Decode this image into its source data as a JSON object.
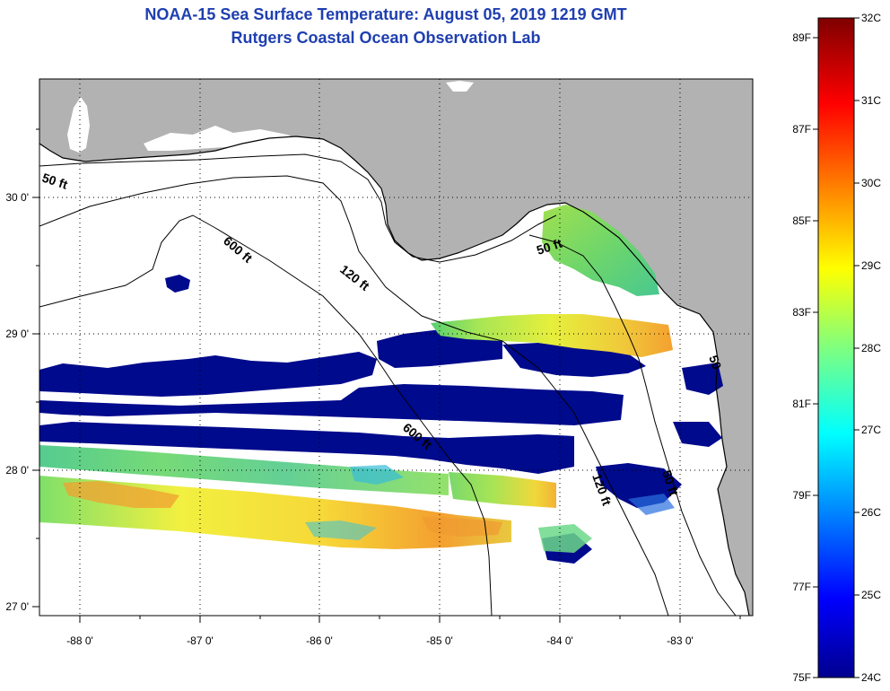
{
  "header": {
    "title": "NOAA-15 Sea Surface Temperature:  August 05, 2019 1219 GMT",
    "subtitle": "Rutgers Coastal Ocean Observation Lab"
  },
  "map": {
    "lon_labels": [
      "-88 0'",
      "-87 0'",
      "-86 0'",
      "-85 0'",
      "-84 0'",
      "-83 0'"
    ],
    "lat_labels": [
      "27 0'",
      "28 0'",
      "29 0'",
      "30 0'"
    ],
    "depth_labels": [
      "50 ft",
      "600 ft",
      "120 ft",
      "50 ft",
      "600 ft",
      "120 ft",
      "50 ft",
      "50"
    ],
    "colors": {
      "land": "#b2b2b2",
      "cloud": "#ffffff",
      "cold": "#000a8c"
    }
  },
  "colorbar": {
    "fahrenheit_labels": [
      "89F",
      "87F",
      "85F",
      "83F",
      "81F",
      "79F",
      "77F",
      "75F"
    ],
    "celsius_labels": [
      "32C",
      "31C",
      "30C",
      "29C",
      "28C",
      "27C",
      "26C",
      "25C",
      "24C"
    ]
  }
}
